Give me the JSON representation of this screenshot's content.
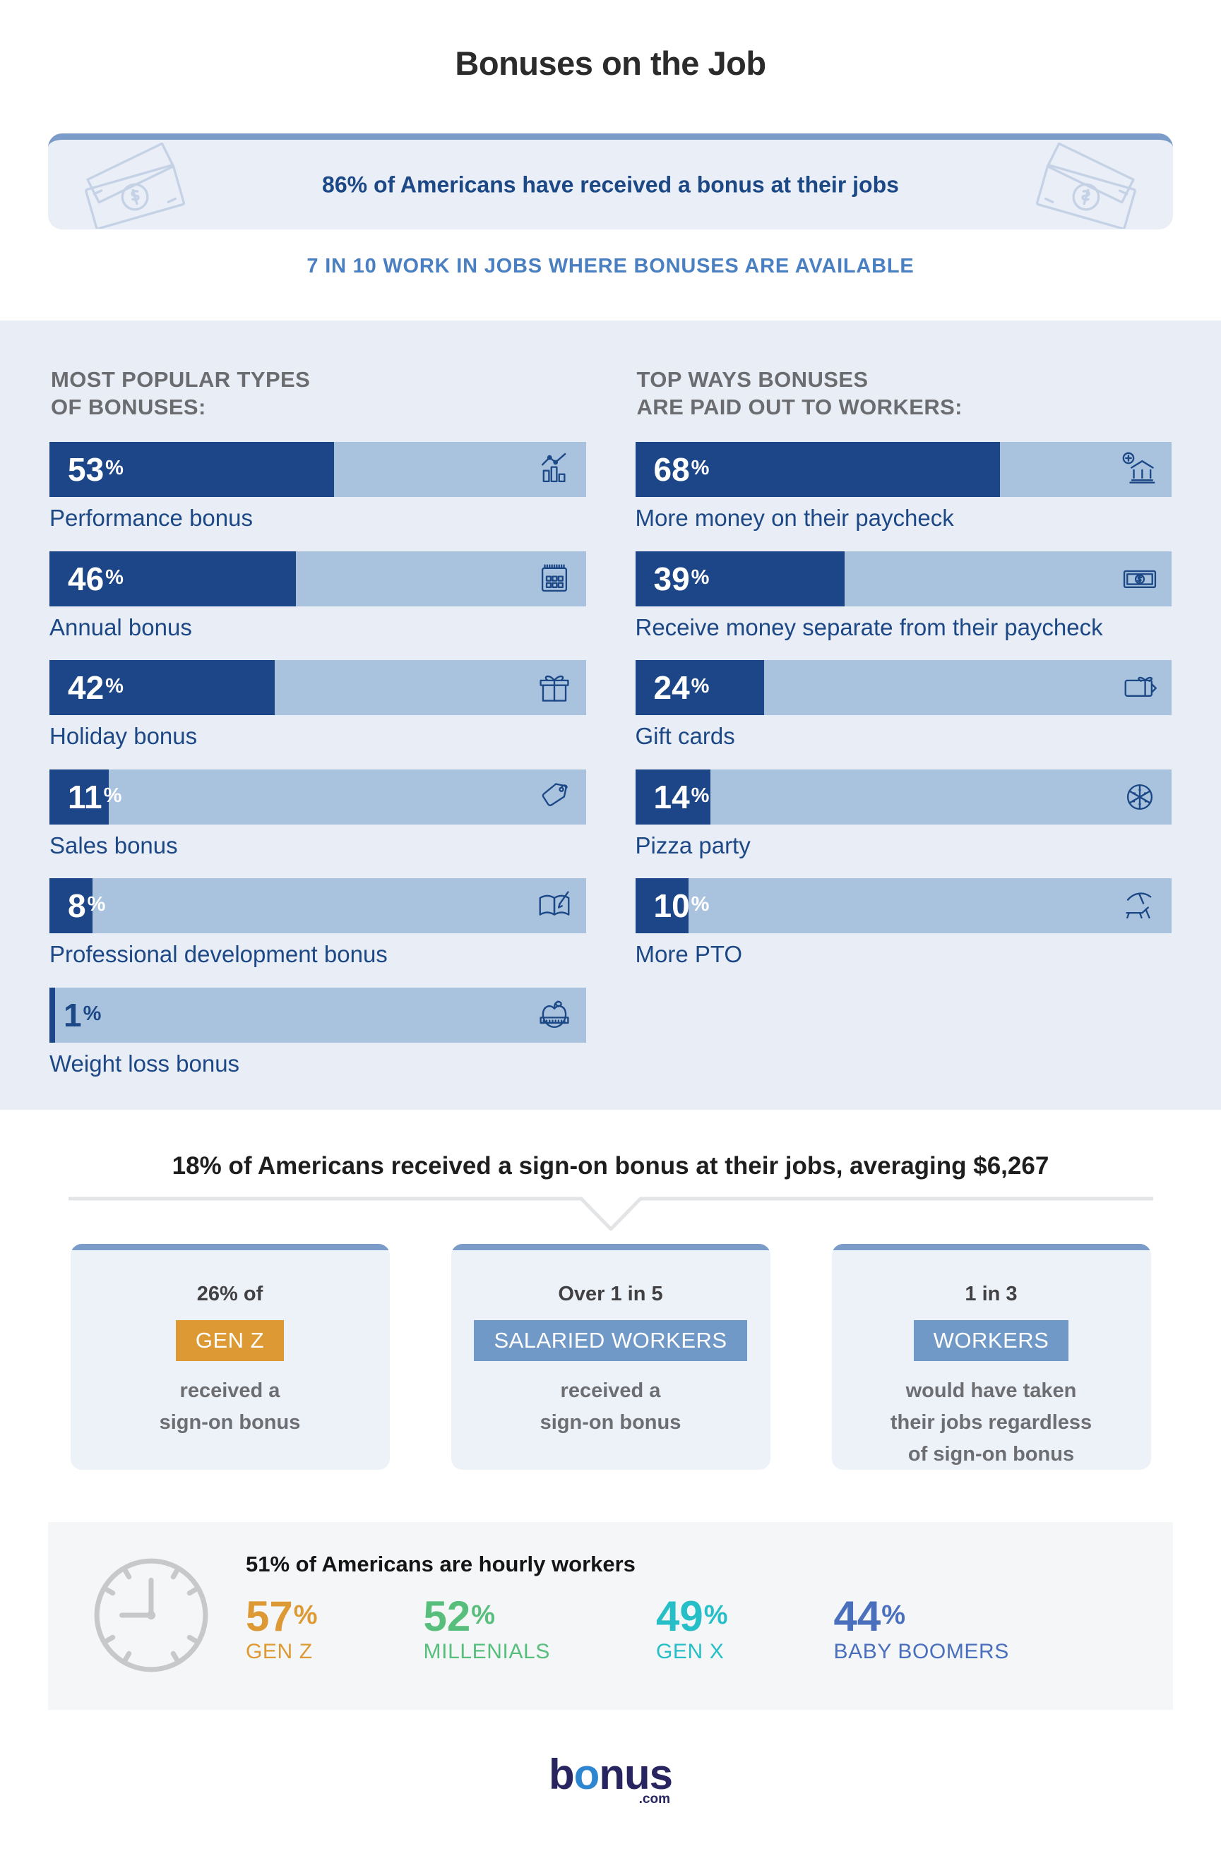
{
  "page": {
    "title": "Bonuses on the Job"
  },
  "banner": {
    "text": "86% of Americans have received a bonus at their jobs",
    "subtext": "7 IN 10 WORK IN JOBS WHERE BONUSES ARE AVAILABLE"
  },
  "chart_data": [
    {
      "type": "bar",
      "orientation": "horizontal",
      "title": "MOST POPULAR TYPES OF BONUSES:",
      "title_lines": [
        "MOST POPULAR TYPES",
        "OF BONUSES:"
      ],
      "unit": "%",
      "xlim": [
        0,
        100
      ],
      "categories": [
        "Performance bonus",
        "Annual bonus",
        "Holiday bonus",
        "Sales bonus",
        "Professional development bonus",
        "Weight loss bonus"
      ],
      "values": [
        53,
        46,
        42,
        11,
        8,
        1
      ],
      "icons": [
        "bar-chart-icon",
        "calendar-icon",
        "gift-icon",
        "price-tag-icon",
        "book-pencil-icon",
        "apple-tape-icon"
      ],
      "bar_color": "#1C4687",
      "track_color": "#A9C3DF"
    },
    {
      "type": "bar",
      "orientation": "horizontal",
      "title": "TOP WAYS BONUSES ARE PAID OUT TO WORKERS:",
      "title_lines": [
        "TOP WAYS BONUSES",
        "ARE PAID OUT TO WORKERS:"
      ],
      "unit": "%",
      "xlim": [
        0,
        100
      ],
      "categories": [
        "More money on their paycheck",
        "Receive money separate from their paycheck",
        "Gift cards",
        "Pizza party",
        "More PTO"
      ],
      "values": [
        68,
        39,
        24,
        14,
        10
      ],
      "icons": [
        "bank-plus-icon",
        "money-bill-icon",
        "gift-card-icon",
        "pizza-icon",
        "beach-chair-icon"
      ],
      "bar_color": "#1C4687",
      "track_color": "#A9C3DF"
    }
  ],
  "signon": {
    "heading": "18% of Americans received a sign-on bonus at their jobs, averaging $6,267",
    "cards": [
      {
        "top": "26% of",
        "badge": "GEN Z",
        "badge_color": "#DD9933",
        "body": [
          "received a",
          "sign-on bonus"
        ]
      },
      {
        "top": "Over 1 in 5",
        "badge": "SALARIED WORKERS",
        "badge_color": "#7099C7",
        "body": [
          "received a",
          "sign-on bonus"
        ]
      },
      {
        "top": "1 in 3",
        "badge": "WORKERS",
        "badge_color": "#7099C7",
        "body": [
          "would have taken",
          "their jobs regardless",
          "of sign-on bonus"
        ]
      }
    ]
  },
  "hourly": {
    "heading": "51% of Americans are hourly workers",
    "stats": [
      {
        "value": "57",
        "unit": "%",
        "label": "GEN Z",
        "color": "#DD9933"
      },
      {
        "value": "52",
        "unit": "%",
        "label": "MILLENIALS",
        "color": "#57BE7C"
      },
      {
        "value": "49",
        "unit": "%",
        "label": "GEN X",
        "color": "#26BFC7"
      },
      {
        "value": "44",
        "unit": "%",
        "label": "BABY BOOMERS",
        "color": "#4A6FBD"
      }
    ]
  },
  "brand": {
    "prefix": "b",
    "accent": "o",
    "rest": "nus",
    "tld": ".com"
  },
  "colors": {
    "bar_fill": "#1C4687",
    "bar_track": "#A9C3DF",
    "panel_bg": "#E9EDF5",
    "banner_bg": "#E9EEF7",
    "banner_border": "#7B9CC9",
    "heading_gray": "#6B6C6F",
    "subtitle_blue": "#4A7FC1",
    "dark_blue_text": "#1D4886",
    "orange": "#DD9933",
    "badge_blue": "#7099C7",
    "card_bg": "#EDF1F8",
    "body_gray": "#6D6E71",
    "footer_panel_bg": "#F4F6F8",
    "green": "#57BE7C",
    "teal": "#26BFC7",
    "boomer_blue": "#4A6FBD",
    "logo_navy": "#272460",
    "logo_blue": "#2E86D1"
  }
}
